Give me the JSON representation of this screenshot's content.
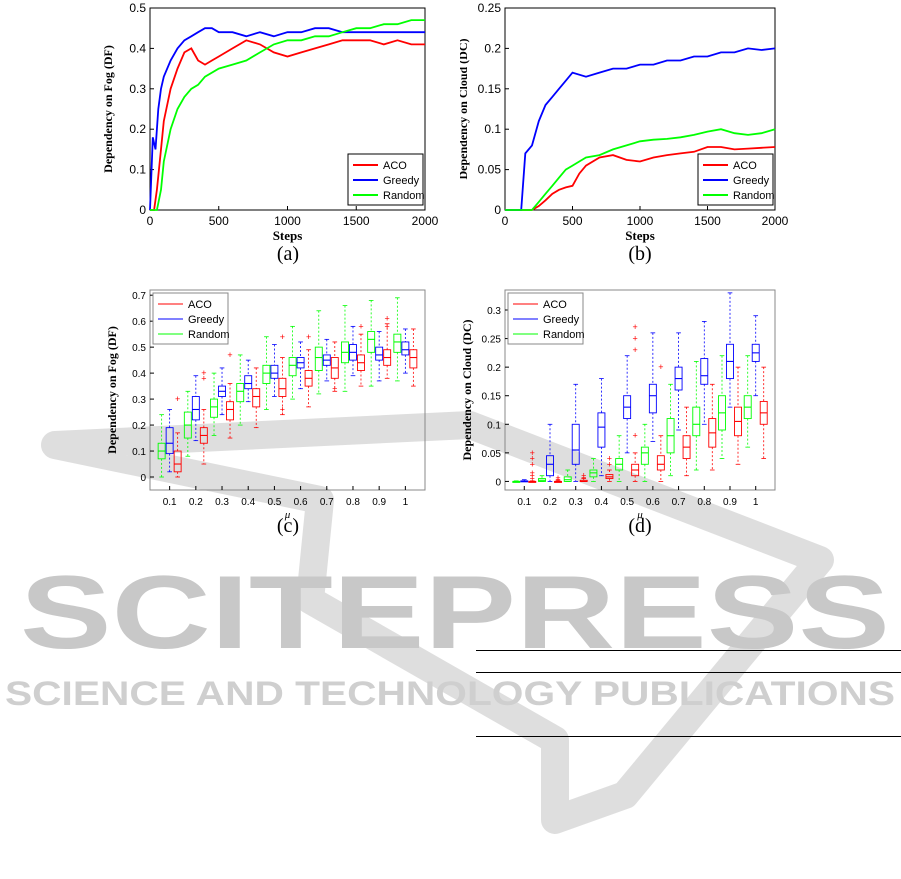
{
  "watermark": {
    "main": "SCITEPRESS",
    "sub": "SCIENCE AND TECHNOLOGY PUBLICATIONS"
  },
  "captions": [
    "(a)",
    "(b)",
    "(c)",
    "(d)"
  ],
  "colors": {
    "ACO": "#ff0000",
    "Greedy": "#0000ff",
    "Random": "#00ff00"
  },
  "chart_data": [
    {
      "type": "line",
      "xlabel": "Steps",
      "ylabel": "Dependency on Fog (DF)",
      "xlim": [
        0,
        2000
      ],
      "ylim": [
        0,
        0.5
      ],
      "xticks": [
        0,
        500,
        1000,
        1500,
        2000
      ],
      "yticks": [
        0,
        0.1,
        0.2,
        0.3,
        0.4,
        0.5
      ],
      "legend_position": "bottom-right",
      "series": [
        {
          "name": "ACO",
          "x": [
            0,
            30,
            50,
            80,
            100,
            150,
            200,
            250,
            300,
            350,
            400,
            450,
            500,
            600,
            700,
            800,
            900,
            1000,
            1100,
            1200,
            1300,
            1400,
            1500,
            1600,
            1700,
            1800,
            1900,
            2000
          ],
          "y": [
            0,
            0,
            0.05,
            0.15,
            0.22,
            0.3,
            0.35,
            0.39,
            0.4,
            0.37,
            0.36,
            0.37,
            0.38,
            0.4,
            0.42,
            0.41,
            0.39,
            0.38,
            0.39,
            0.4,
            0.41,
            0.42,
            0.42,
            0.42,
            0.41,
            0.42,
            0.41,
            0.41
          ]
        },
        {
          "name": "Greedy",
          "x": [
            0,
            20,
            40,
            60,
            80,
            100,
            150,
            200,
            250,
            300,
            350,
            400,
            450,
            500,
            600,
            700,
            800,
            900,
            1000,
            1100,
            1200,
            1300,
            1400,
            1500,
            1600,
            1700,
            1800,
            1900,
            2000
          ],
          "y": [
            0,
            0.18,
            0.15,
            0.25,
            0.3,
            0.33,
            0.37,
            0.4,
            0.42,
            0.43,
            0.44,
            0.45,
            0.45,
            0.44,
            0.44,
            0.43,
            0.44,
            0.43,
            0.44,
            0.44,
            0.45,
            0.45,
            0.44,
            0.44,
            0.44,
            0.44,
            0.44,
            0.44,
            0.44
          ]
        },
        {
          "name": "Random",
          "x": [
            0,
            50,
            80,
            100,
            150,
            200,
            250,
            300,
            350,
            400,
            500,
            600,
            700,
            800,
            900,
            1000,
            1100,
            1200,
            1300,
            1400,
            1500,
            1600,
            1700,
            1800,
            1900,
            2000
          ],
          "y": [
            0,
            0,
            0.05,
            0.12,
            0.2,
            0.25,
            0.28,
            0.3,
            0.31,
            0.33,
            0.35,
            0.36,
            0.37,
            0.39,
            0.41,
            0.42,
            0.42,
            0.43,
            0.43,
            0.44,
            0.45,
            0.45,
            0.46,
            0.46,
            0.47,
            0.47
          ]
        }
      ]
    },
    {
      "type": "line",
      "xlabel": "Steps",
      "ylabel": "Dependency on Cloud (DC)",
      "xlim": [
        0,
        2000
      ],
      "ylim": [
        0,
        0.25
      ],
      "xticks": [
        0,
        500,
        1000,
        1500,
        2000
      ],
      "yticks": [
        0,
        0.05,
        0.1,
        0.15,
        0.2,
        0.25
      ],
      "legend_position": "bottom-right",
      "series": [
        {
          "name": "ACO",
          "x": [
            0,
            200,
            250,
            300,
            350,
            400,
            450,
            500,
            550,
            600,
            700,
            800,
            900,
            1000,
            1100,
            1200,
            1300,
            1400,
            1500,
            1600,
            1700,
            1800,
            1900,
            2000
          ],
          "y": [
            0,
            0,
            0.005,
            0.012,
            0.02,
            0.025,
            0.028,
            0.03,
            0.045,
            0.055,
            0.065,
            0.068,
            0.062,
            0.06,
            0.065,
            0.068,
            0.07,
            0.072,
            0.078,
            0.078,
            0.075,
            0.076,
            0.077,
            0.078
          ]
        },
        {
          "name": "Greedy",
          "x": [
            0,
            120,
            150,
            200,
            250,
            300,
            350,
            400,
            450,
            500,
            600,
            700,
            800,
            900,
            1000,
            1100,
            1200,
            1300,
            1400,
            1500,
            1600,
            1700,
            1800,
            1900,
            2000
          ],
          "y": [
            0,
            0,
            0.07,
            0.08,
            0.11,
            0.13,
            0.14,
            0.15,
            0.16,
            0.17,
            0.165,
            0.17,
            0.175,
            0.175,
            0.18,
            0.18,
            0.185,
            0.185,
            0.19,
            0.19,
            0.195,
            0.195,
            0.2,
            0.198,
            0.2
          ]
        },
        {
          "name": "Random",
          "x": [
            0,
            200,
            250,
            300,
            350,
            400,
            450,
            500,
            550,
            600,
            700,
            800,
            900,
            1000,
            1100,
            1200,
            1300,
            1400,
            1500,
            1600,
            1700,
            1800,
            1900,
            2000
          ],
          "y": [
            0,
            0,
            0.01,
            0.02,
            0.03,
            0.04,
            0.05,
            0.055,
            0.06,
            0.065,
            0.068,
            0.075,
            0.08,
            0.085,
            0.087,
            0.088,
            0.09,
            0.093,
            0.097,
            0.1,
            0.095,
            0.093,
            0.095,
            0.1
          ]
        }
      ]
    },
    {
      "type": "box",
      "xlabel": "μ",
      "ylabel": "Dependency on Fog (DF)",
      "categories": [
        "0.1",
        "0.2",
        "0.3",
        "0.4",
        "0.5",
        "0.6",
        "0.7",
        "0.8",
        "0.9",
        "1"
      ],
      "ylim": [
        -0.05,
        0.72
      ],
      "yticks": [
        0,
        0.1,
        0.2,
        0.3,
        0.4,
        0.5,
        0.6,
        0.7
      ],
      "legend_position": "top-left",
      "series": [
        {
          "name": "ACO",
          "boxes": [
            [
              0,
              0.02,
              0.05,
              0.1,
              0.17
            ],
            [
              0.05,
              0.13,
              0.16,
              0.19,
              0.26
            ],
            [
              0.15,
              0.22,
              0.26,
              0.29,
              0.36
            ],
            [
              0.19,
              0.27,
              0.31,
              0.34,
              0.42
            ],
            [
              0.24,
              0.31,
              0.34,
              0.38,
              0.46
            ],
            [
              0.27,
              0.35,
              0.38,
              0.41,
              0.49
            ],
            [
              0.33,
              0.38,
              0.42,
              0.46,
              0.52
            ],
            [
              0.35,
              0.41,
              0.44,
              0.47,
              0.55
            ],
            [
              0.38,
              0.43,
              0.46,
              0.49,
              0.59
            ],
            [
              0.35,
              0.42,
              0.46,
              0.49,
              0.57
            ]
          ],
          "outliers": [
            [
              0.3
            ],
            [
              0.38,
              0.4
            ],
            [
              0.47
            ],
            [],
            [
              0.26,
              0.54
            ],
            [
              0.54
            ],
            [
              0.34
            ],
            [
              0.58
            ],
            [
              0.61,
              0.58
            ],
            []
          ]
        },
        {
          "name": "Greedy",
          "boxes": [
            [
              0.02,
              0.09,
              0.13,
              0.19,
              0.26
            ],
            [
              0.14,
              0.22,
              0.26,
              0.31,
              0.39
            ],
            [
              0.24,
              0.31,
              0.33,
              0.35,
              0.42
            ],
            [
              0.29,
              0.34,
              0.36,
              0.39,
              0.45
            ],
            [
              0.31,
              0.38,
              0.4,
              0.43,
              0.51
            ],
            [
              0.34,
              0.42,
              0.44,
              0.46,
              0.52
            ],
            [
              0.37,
              0.43,
              0.45,
              0.47,
              0.53
            ],
            [
              0.39,
              0.45,
              0.48,
              0.51,
              0.58
            ],
            [
              0.37,
              0.45,
              0.47,
              0.5,
              0.56
            ],
            [
              0.4,
              0.47,
              0.49,
              0.52,
              0.57
            ]
          ],
          "outliers": [
            [],
            [],
            [],
            [],
            [],
            [],
            [],
            [],
            [],
            []
          ]
        },
        {
          "name": "Random",
          "boxes": [
            [
              0.0,
              0.07,
              0.1,
              0.13,
              0.24
            ],
            [
              0.08,
              0.15,
              0.2,
              0.25,
              0.33
            ],
            [
              0.16,
              0.23,
              0.27,
              0.3,
              0.4
            ],
            [
              0.2,
              0.29,
              0.33,
              0.36,
              0.47
            ],
            [
              0.26,
              0.36,
              0.4,
              0.43,
              0.54
            ],
            [
              0.3,
              0.39,
              0.43,
              0.46,
              0.58
            ],
            [
              0.32,
              0.41,
              0.46,
              0.5,
              0.64
            ],
            [
              0.33,
              0.44,
              0.48,
              0.52,
              0.66
            ],
            [
              0.35,
              0.48,
              0.53,
              0.56,
              0.68
            ],
            [
              0.37,
              0.48,
              0.52,
              0.55,
              0.69
            ]
          ],
          "outliers": [
            [],
            [],
            [],
            [],
            [],
            [],
            [],
            [],
            [],
            []
          ]
        }
      ]
    },
    {
      "type": "box",
      "xlabel": "μ",
      "ylabel": "Dependency on Cloud (DC)",
      "categories": [
        "0.1",
        "0.2",
        "0.3",
        "0.4",
        "0.5",
        "0.6",
        "0.7",
        "0.8",
        "0.9",
        "1"
      ],
      "ylim": [
        -0.015,
        0.335
      ],
      "yticks": [
        0,
        0.05,
        0.1,
        0.15,
        0.2,
        0.25,
        0.3
      ],
      "legend_position": "top-left",
      "series": [
        {
          "name": "ACO",
          "boxes": [
            [
              0,
              0,
              0,
              0,
              0.001
            ],
            [
              0,
              0,
              0,
              0,
              0.002
            ],
            [
              0,
              0,
              0,
              0.002,
              0.005
            ],
            [
              0,
              0.005,
              0.008,
              0.012,
              0.02
            ],
            [
              0,
              0.01,
              0.02,
              0.03,
              0.05
            ],
            [
              0,
              0.02,
              0.03,
              0.045,
              0.08
            ],
            [
              0.01,
              0.04,
              0.06,
              0.08,
              0.13
            ],
            [
              0.02,
              0.06,
              0.085,
              0.11,
              0.17
            ],
            [
              0.03,
              0.08,
              0.105,
              0.13,
              0.2
            ],
            [
              0.04,
              0.1,
              0.12,
              0.14,
              0.2
            ]
          ],
          "outliers": [
            [
              0.005,
              0.01,
              0.015,
              0.03,
              0.04,
              0.05
            ],
            [
              0.003,
              0.006
            ],
            [
              0.007,
              0.01
            ],
            [
              0.03,
              0.04
            ],
            [
              0.08,
              0.25,
              0.27,
              0.23
            ],
            [
              0.2
            ],
            [],
            [],
            [],
            []
          ]
        },
        {
          "name": "Greedy",
          "boxes": [
            [
              0,
              0,
              0,
              0.001,
              0.003
            ],
            [
              0,
              0.01,
              0.03,
              0.045,
              0.1
            ],
            [
              0,
              0.03,
              0.055,
              0.1,
              0.17
            ],
            [
              0.01,
              0.06,
              0.095,
              0.12,
              0.18
            ],
            [
              0.05,
              0.11,
              0.13,
              0.15,
              0.22
            ],
            [
              0.07,
              0.12,
              0.15,
              0.17,
              0.26
            ],
            [
              0.09,
              0.16,
              0.18,
              0.2,
              0.26
            ],
            [
              0.1,
              0.17,
              0.185,
              0.215,
              0.28
            ],
            [
              0.13,
              0.18,
              0.21,
              0.24,
              0.33
            ],
            [
              0.15,
              0.21,
              0.225,
              0.24,
              0.29
            ]
          ],
          "outliers": [
            [],
            [],
            [],
            [],
            [],
            [],
            [],
            [],
            [],
            []
          ]
        },
        {
          "name": "Random",
          "boxes": [
            [
              0,
              0,
              0,
              0,
              0.001
            ],
            [
              0,
              0,
              0.002,
              0.005,
              0.01
            ],
            [
              0,
              0,
              0.003,
              0.008,
              0.02
            ],
            [
              0,
              0.008,
              0.015,
              0.02,
              0.04
            ],
            [
              0,
              0.02,
              0.03,
              0.04,
              0.08
            ],
            [
              0,
              0.03,
              0.05,
              0.06,
              0.1
            ],
            [
              0.01,
              0.05,
              0.08,
              0.11,
              0.17
            ],
            [
              0.02,
              0.08,
              0.1,
              0.13,
              0.21
            ],
            [
              0.04,
              0.09,
              0.12,
              0.15,
              0.22
            ],
            [
              0.06,
              0.11,
              0.13,
              0.15,
              0.22
            ]
          ],
          "outliers": [
            [],
            [],
            [],
            [],
            [],
            [],
            [],
            [],
            [],
            []
          ]
        }
      ]
    }
  ]
}
